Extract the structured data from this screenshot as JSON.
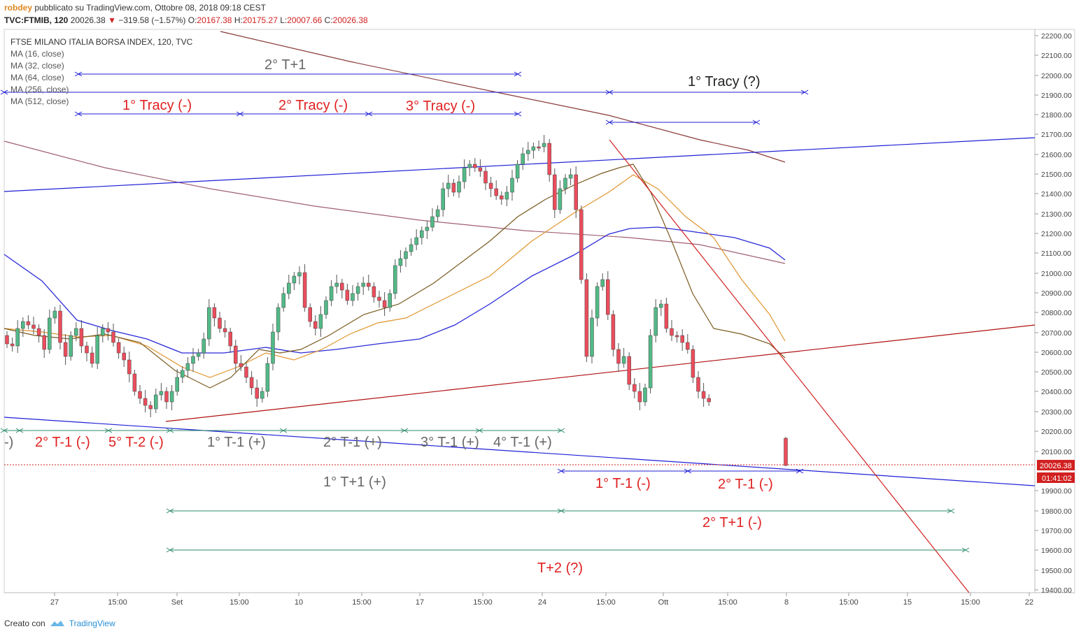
{
  "header": {
    "author": "robdey",
    "published": "pubblicato su TradingView.com, Ottobre 08, 2018 09:18 CEST",
    "symbol": "TVC:FTMIB, 120",
    "last": "20026.38",
    "change": "−319.58 (−1.57%)",
    "open_label": "O:",
    "open": "20167.38",
    "high_label": "H:",
    "high": "20175.27",
    "low_label": "L:",
    "low": "20007.66",
    "close_label": "C:",
    "close": "20026.38"
  },
  "legend": {
    "title": "FTSE MILANO ITALIA BORSA INDEX, 120, TVC",
    "ma": [
      "MA (16, close)",
      "MA (32, close)",
      "MA (64, close)",
      "MA (256, close)",
      "MA (512, close)"
    ]
  },
  "price_axis": {
    "ticks": [
      "22200.00",
      "22100.00",
      "22000.00",
      "21900.00",
      "21800.00",
      "21700.00",
      "21600.00",
      "21500.00",
      "21400.00",
      "21300.00",
      "21200.00",
      "21100.00",
      "21000.00",
      "20900.00",
      "20800.00",
      "20700.00",
      "20600.00",
      "20500.00",
      "20400.00",
      "20300.00",
      "20200.00",
      "20100.00",
      "19900.00",
      "19800.00",
      "19700.00",
      "19600.00",
      "19500.00",
      "19400.00"
    ],
    "last_price": "20026.38",
    "countdown": "01:41:02"
  },
  "time_axis": [
    "27",
    "15:00",
    "Set",
    "15:00",
    "10",
    "15:00",
    "17",
    "15:00",
    "24",
    "15:00",
    "Ott",
    "15:00",
    "8",
    "15:00",
    "15",
    "15:00",
    "22"
  ],
  "annotations": {
    "t2_plus1_top": "2° T+1",
    "tracy1_q": "1° Tracy (?)",
    "tracy1": "1° Tracy (-)",
    "tracy2": "2° Tracy (-)",
    "tracy3": "3° Tracy (-)",
    "partial": "-)",
    "t2_m1_neg": "2° T-1 (-)",
    "t5_m2_neg": "5° T-2 (-)",
    "t1_m1_pos": "1° T-1 (+)",
    "t2_m1_pos": "2° T-1 (+)",
    "t3_m1_pos": "3° T-1 (+)",
    "t4_m1_pos": "4° T-1 (+)",
    "t1_p1_pos": "1° T+1 (+)",
    "t1_m1_neg_r": "1° T-1 (-)",
    "t2_m1_neg_r": "2° T-1 (-)",
    "t2_p1_neg": "2° T+1 (-)",
    "t2_q": "T+2 (?)"
  },
  "footer": {
    "created_with": "Creato con",
    "brand": "TradingView"
  },
  "colors": {
    "up": "#53b987",
    "down": "#eb4d5c",
    "blue_line": "#1f1fd6",
    "red_line": "#b01010",
    "annotation_red": "#e02020",
    "annotation_gray": "#666666",
    "green_arrow": "#2e8b6b"
  }
}
